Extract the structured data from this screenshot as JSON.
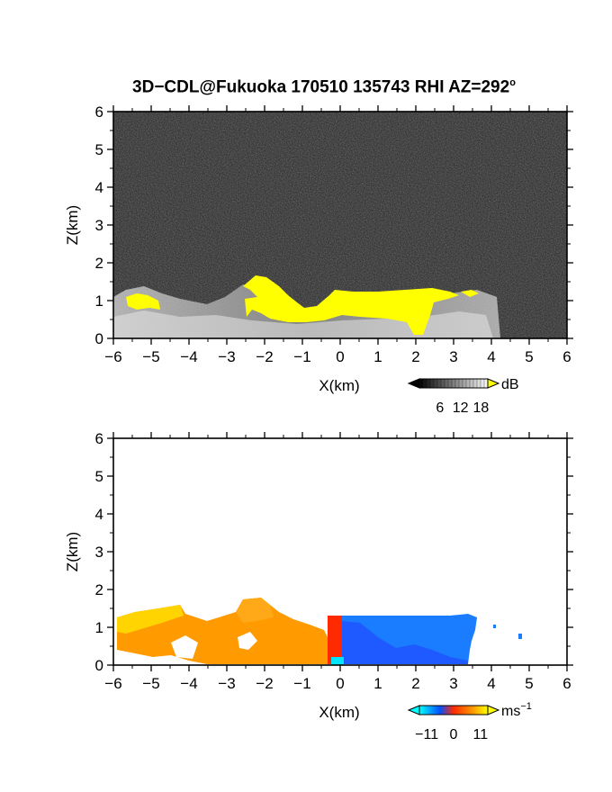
{
  "title": {
    "text": "3D−CDL@Fukuoka 170510 135743 RHI AZ=292",
    "superscript": "o"
  },
  "chart_data": [
    {
      "type": "heatmap",
      "variable": "backscatter intensity",
      "title": "",
      "xlabel": "X(km)",
      "ylabel": "Z(km)",
      "xlim": [
        -6,
        6
      ],
      "ylim": [
        0,
        6
      ],
      "xticks": [
        "−6",
        "−5",
        "−4",
        "−3",
        "−2",
        "−1",
        "0",
        "1",
        "2",
        "3",
        "4",
        "5",
        "6"
      ],
      "yticks": [
        "0",
        "1",
        "2",
        "3",
        "4",
        "5",
        "6"
      ],
      "grid": false,
      "colorbar": {
        "unit": "dB",
        "ticks": [
          "6",
          "12",
          "18"
        ],
        "range": [
          0,
          20
        ],
        "colors": [
          "#000000",
          "#ffffff",
          "#ffff00"
        ]
      },
      "background": "#1e1e1e",
      "saturated_color": "#ffff00",
      "echo_extent_x": [
        -6,
        4.2
      ],
      "echo_top_z": [
        {
          "x": -6.0,
          "z": 1.3
        },
        {
          "x": -5.3,
          "z": 1.4
        },
        {
          "x": -4.6,
          "z": 1.3
        },
        {
          "x": -4.0,
          "z": 1.1
        },
        {
          "x": -3.0,
          "z": 1.0
        },
        {
          "x": -2.5,
          "z": 1.6
        },
        {
          "x": -1.8,
          "z": 1.3
        },
        {
          "x": -1.0,
          "z": 0.85
        },
        {
          "x": -0.2,
          "z": 1.25
        },
        {
          "x": 1.0,
          "z": 1.25
        },
        {
          "x": 2.5,
          "z": 1.3
        },
        {
          "x": 3.5,
          "z": 1.2
        },
        {
          "x": 4.2,
          "z": 1.15
        }
      ]
    },
    {
      "type": "heatmap",
      "variable": "radial velocity",
      "title": "",
      "xlabel": "X(km)",
      "ylabel": "Z(km)",
      "xlim": [
        -6,
        6
      ],
      "ylim": [
        0,
        6
      ],
      "xticks": [
        "−6",
        "−5",
        "−4",
        "−3",
        "−2",
        "−1",
        "0",
        "1",
        "2",
        "3",
        "4",
        "5",
        "6"
      ],
      "yticks": [
        "0",
        "1",
        "2",
        "3",
        "4",
        "5",
        "6"
      ],
      "grid": false,
      "colorbar": {
        "unit": "ms",
        "unit_exponent": "−1",
        "ticks": [
          "−11",
          "0",
          "11"
        ],
        "range": [
          -14,
          14
        ],
        "colors": [
          "#00ffff",
          "#0050ff",
          "#ff2a00",
          "#ff8c00",
          "#ffff00"
        ]
      },
      "background": "#ffffff",
      "regions": [
        {
          "side": "negative x",
          "x_range": [
            -6,
            -0.2
          ],
          "velocity_range": [
            4,
            11
          ]
        },
        {
          "side": "positive x",
          "x_range": [
            0.1,
            3.7
          ],
          "velocity_range": [
            -11,
            -5
          ]
        }
      ]
    }
  ]
}
